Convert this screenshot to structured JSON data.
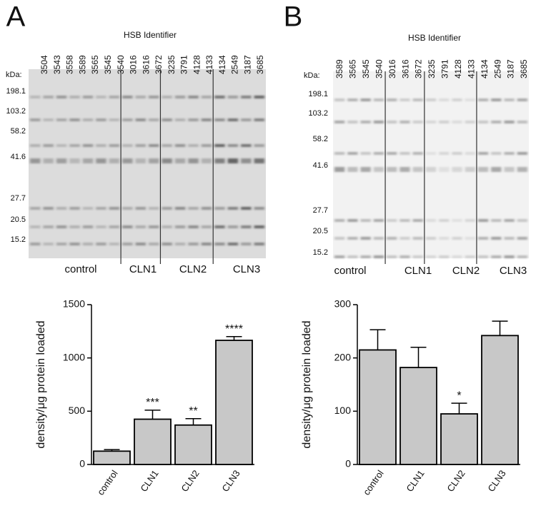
{
  "panels": [
    {
      "label": "A",
      "blot": {
        "title": "HSB Identifier",
        "ids": [
          "3504",
          "3543",
          "3558",
          "3589",
          "3565",
          "3545",
          "3540",
          "3016",
          "3616",
          "3672",
          "3235",
          "3791",
          "4128",
          "4133",
          "4134",
          "2549",
          "3187",
          "3685"
        ],
        "kda_label": "kDa:",
        "markers": [
          "198.1",
          "103.2",
          "58.2",
          "41.6",
          "27.7",
          "20.5",
          "15.2"
        ],
        "groups": [
          "control",
          "CLN1",
          "CLN2",
          "CLN3"
        ]
      }
    },
    {
      "label": "B",
      "blot": {
        "title": "HSB Identifier",
        "ids": [
          "3589",
          "3565",
          "3545",
          "3540",
          "3016",
          "3616",
          "3672",
          "3235",
          "3791",
          "4128",
          "4133",
          "4134",
          "2549",
          "3187",
          "3685"
        ],
        "kda_label": "kDa:",
        "markers": [
          "198.1",
          "103.2",
          "58.2",
          "41.6",
          "27.7",
          "20.5",
          "15.2"
        ],
        "groups": [
          "control",
          "CLN1",
          "CLN2",
          "CLN3"
        ]
      }
    }
  ],
  "chart_data": [
    {
      "type": "bar",
      "y_label": "density/μg protein loaded",
      "categories": [
        "control",
        "CLN1",
        "CLN2",
        "CLN3"
      ],
      "values": [
        125,
        425,
        370,
        1165
      ],
      "errors": [
        15,
        85,
        60,
        35
      ],
      "significance": [
        null,
        "***",
        "**",
        "****"
      ],
      "color": "#c8c8c8",
      "ylim": [
        0,
        1500
      ],
      "yticks": [
        0,
        500,
        1000,
        1500
      ]
    },
    {
      "type": "bar",
      "y_label": "density/μg protein loaded",
      "categories": [
        "control",
        "CLN1",
        "CLN2",
        "CLN3"
      ],
      "values": [
        215,
        182,
        95,
        242
      ],
      "errors": [
        38,
        38,
        20,
        27
      ],
      "significance": [
        null,
        null,
        "*",
        null
      ],
      "color": "#c8c8c8",
      "ylim": [
        0,
        300
      ],
      "yticks": [
        0,
        100,
        200,
        300
      ]
    }
  ]
}
